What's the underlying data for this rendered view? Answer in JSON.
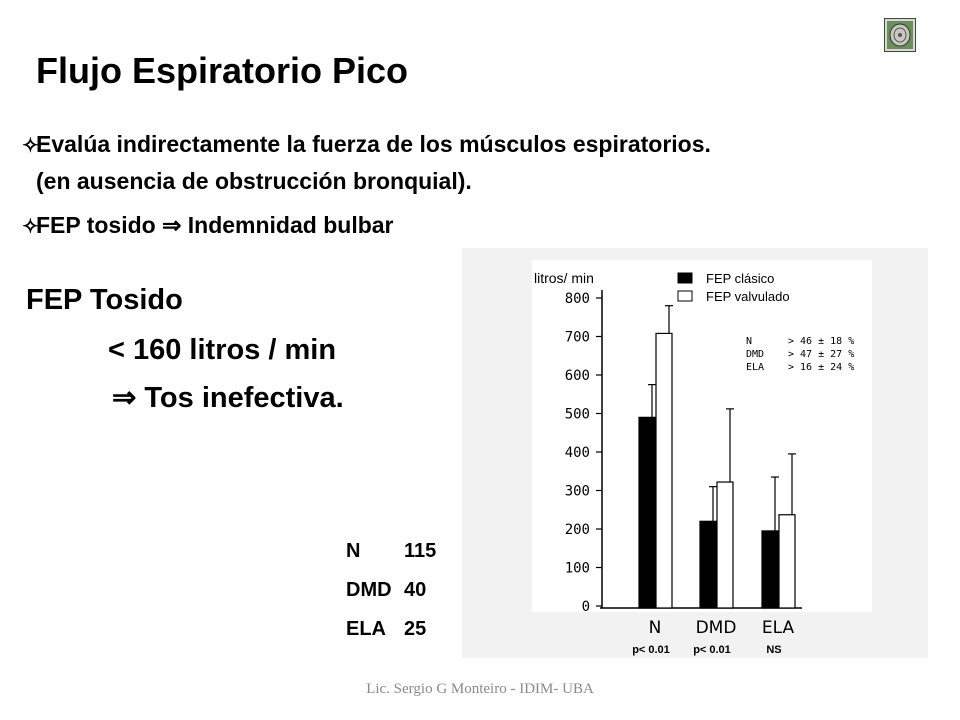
{
  "title": "Flujo Espiratorio Pico",
  "bullets": [
    {
      "icon": "star-bullet-icon",
      "text": "Evalúa indirectamente la fuerza  de los músculos espiratorios.",
      "continuation": "(en ausencia de obstrucción bronquial)."
    },
    {
      "icon": "star-bullet-icon",
      "text_before": "FEP tosido",
      "arrow": "⇒",
      "text_after": "Indemnidad bulbar"
    }
  ],
  "fep_tosido": {
    "heading": "FEP Tosido",
    "threshold": "< 160 litros / min",
    "arrow": "⇒",
    "consequence": "Tos inefectiva."
  },
  "sample_sizes": [
    {
      "group": "N",
      "n": "115"
    },
    {
      "group": "DMD",
      "n": "40"
    },
    {
      "group": "ELA",
      "n": "25"
    }
  ],
  "chart_data": {
    "type": "bar",
    "ylabel": "litros/ min",
    "ylim": [
      0,
      800
    ],
    "yticks": [
      0,
      100,
      200,
      300,
      400,
      500,
      600,
      700,
      800
    ],
    "categories": [
      "N",
      "DMD",
      "ELA"
    ],
    "series": [
      {
        "name": "FEP clásico",
        "color": "#000000",
        "values": [
          490,
          220,
          195
        ],
        "error": [
          85,
          90,
          140
        ]
      },
      {
        "name": "FEP valvulado",
        "color": "#ffffff",
        "values": [
          708,
          322,
          237
        ],
        "error": [
          72,
          190,
          158
        ]
      }
    ],
    "legend_position": "top-right",
    "annotation_box": [
      {
        "group": "N",
        "value": "> 46 ±  18  %"
      },
      {
        "group": "DMD",
        "value": "> 47 ±  27  %"
      },
      {
        "group": "ELA",
        "value": "> 16 ±  24  %"
      }
    ],
    "p_values": [
      "p< 0.01",
      "p< 0.01",
      "NS"
    ],
    "grid": false
  },
  "footer": "Lic. Sergio G Monteiro - IDIM- UBA",
  "colors": {
    "text": "#000000",
    "footer": "#8a8a8a",
    "chart_bg": "#f2f2f2"
  }
}
